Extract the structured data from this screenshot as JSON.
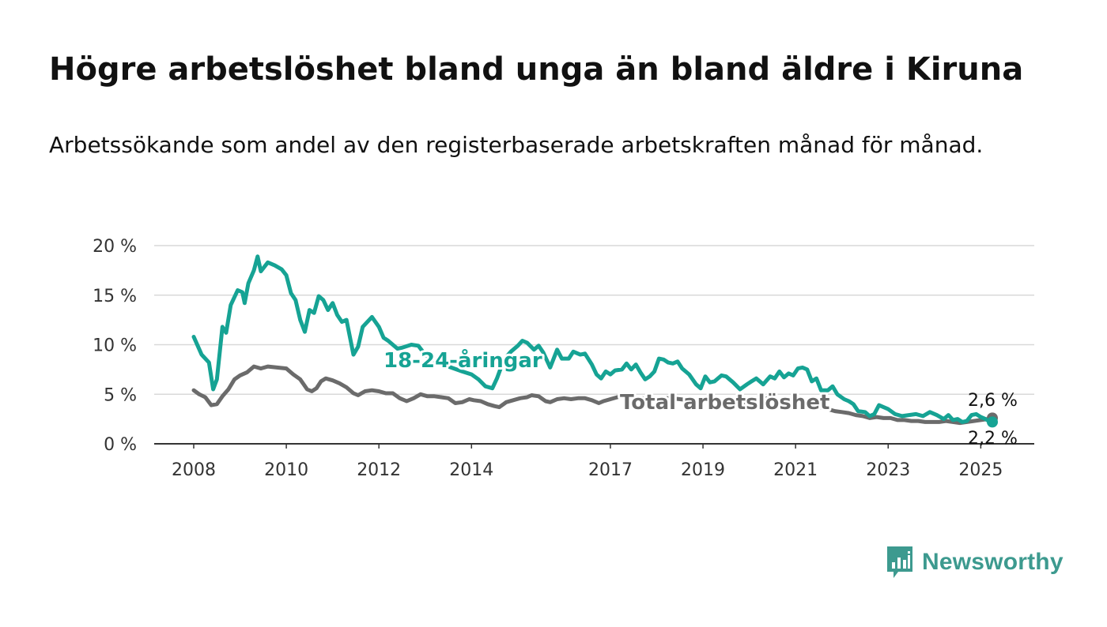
{
  "title": "Högre arbetslöshet bland unga än bland äldre i Kiruna",
  "subtitle": "Arbetssökande som andel av den registerbaserade arbetskraften månad för månad.",
  "logo_text": "Newsworthy",
  "colors": {
    "youth": "#16a394",
    "total": "#6b6b6b",
    "grid": "#d9d9d9",
    "axis": "#333333",
    "logo": "#3d9a8f"
  },
  "chart_data": {
    "type": "line",
    "title": "Högre arbetslöshet bland unga än bland äldre i Kiruna",
    "subtitle": "Arbetssökande som andel av den registerbaserade arbetskraften månad för månad.",
    "xlabel": "",
    "ylabel": "",
    "x_ticks": [
      "2008",
      "2010",
      "2012",
      "2014",
      "2017",
      "2019",
      "2021",
      "2023",
      "2025"
    ],
    "x_tick_values": [
      2008,
      2010,
      2012,
      2014,
      2017,
      2019,
      2021,
      2023,
      2025
    ],
    "y_ticks": [
      "0 %",
      "5 %",
      "10 %",
      "15 %",
      "20 %"
    ],
    "y_tick_values": [
      0,
      5,
      10,
      15,
      20
    ],
    "xlim": [
      2008,
      2025.25
    ],
    "ylim": [
      0,
      20
    ],
    "grid": true,
    "legend": "inline labels",
    "end_labels": [
      "2,6 %",
      "2,2 %"
    ],
    "series": [
      {
        "name": "18-24-åringar",
        "key": "youth",
        "values": [
          [
            2008.0,
            10.8
          ],
          [
            2008.17,
            9.0
          ],
          [
            2008.33,
            8.2
          ],
          [
            2008.42,
            5.5
          ],
          [
            2008.5,
            6.5
          ],
          [
            2008.62,
            11.8
          ],
          [
            2008.7,
            11.2
          ],
          [
            2008.8,
            14.0
          ],
          [
            2008.95,
            15.5
          ],
          [
            2009.05,
            15.3
          ],
          [
            2009.1,
            14.2
          ],
          [
            2009.18,
            16.2
          ],
          [
            2009.3,
            17.5
          ],
          [
            2009.38,
            18.9
          ],
          [
            2009.45,
            17.4
          ],
          [
            2009.6,
            18.3
          ],
          [
            2009.75,
            18.0
          ],
          [
            2009.9,
            17.6
          ],
          [
            2010.0,
            17.0
          ],
          [
            2010.1,
            15.2
          ],
          [
            2010.2,
            14.5
          ],
          [
            2010.3,
            12.5
          ],
          [
            2010.4,
            11.3
          ],
          [
            2010.5,
            13.5
          ],
          [
            2010.6,
            13.2
          ],
          [
            2010.7,
            14.9
          ],
          [
            2010.8,
            14.5
          ],
          [
            2010.9,
            13.5
          ],
          [
            2011.0,
            14.2
          ],
          [
            2011.1,
            13.0
          ],
          [
            2011.2,
            12.3
          ],
          [
            2011.3,
            12.5
          ],
          [
            2011.45,
            9.0
          ],
          [
            2011.55,
            9.8
          ],
          [
            2011.65,
            11.8
          ],
          [
            2011.85,
            12.8
          ],
          [
            2012.0,
            11.8
          ],
          [
            2012.1,
            10.7
          ],
          [
            2012.2,
            10.4
          ],
          [
            2012.4,
            9.6
          ],
          [
            2012.5,
            9.7
          ],
          [
            2012.7,
            10.0
          ],
          [
            2012.85,
            9.9
          ],
          [
            2013.0,
            9.0
          ],
          [
            2013.3,
            8.0
          ],
          [
            2013.5,
            7.8
          ],
          [
            2013.8,
            7.3
          ],
          [
            2014.0,
            7.0
          ],
          [
            2014.15,
            6.5
          ],
          [
            2014.3,
            5.8
          ],
          [
            2014.45,
            5.6
          ],
          [
            2014.55,
            6.6
          ],
          [
            2014.7,
            8.5
          ],
          [
            2014.85,
            9.3
          ],
          [
            2015.0,
            9.9
          ],
          [
            2015.1,
            10.4
          ],
          [
            2015.2,
            10.2
          ],
          [
            2015.35,
            9.5
          ],
          [
            2015.45,
            9.9
          ],
          [
            2015.55,
            9.2
          ],
          [
            2015.7,
            7.7
          ],
          [
            2015.85,
            9.5
          ],
          [
            2015.95,
            8.6
          ],
          [
            2016.1,
            8.6
          ],
          [
            2016.2,
            9.3
          ],
          [
            2016.35,
            9.0
          ],
          [
            2016.45,
            9.1
          ],
          [
            2016.6,
            8.0
          ],
          [
            2016.7,
            7.0
          ],
          [
            2016.8,
            6.6
          ],
          [
            2016.9,
            7.3
          ],
          [
            2017.0,
            7.0
          ],
          [
            2017.1,
            7.4
          ],
          [
            2017.25,
            7.5
          ],
          [
            2017.35,
            8.1
          ],
          [
            2017.45,
            7.5
          ],
          [
            2017.55,
            8.0
          ],
          [
            2017.65,
            7.2
          ],
          [
            2017.75,
            6.5
          ],
          [
            2017.85,
            6.8
          ],
          [
            2017.95,
            7.3
          ],
          [
            2018.05,
            8.6
          ],
          [
            2018.15,
            8.5
          ],
          [
            2018.25,
            8.2
          ],
          [
            2018.35,
            8.1
          ],
          [
            2018.45,
            8.3
          ],
          [
            2018.55,
            7.6
          ],
          [
            2018.7,
            7.0
          ],
          [
            2018.85,
            6.0
          ],
          [
            2018.95,
            5.6
          ],
          [
            2019.05,
            6.8
          ],
          [
            2019.15,
            6.2
          ],
          [
            2019.25,
            6.3
          ],
          [
            2019.4,
            6.9
          ],
          [
            2019.5,
            6.8
          ],
          [
            2019.65,
            6.2
          ],
          [
            2019.8,
            5.5
          ],
          [
            2019.95,
            6.0
          ],
          [
            2020.05,
            6.3
          ],
          [
            2020.15,
            6.6
          ],
          [
            2020.3,
            6.0
          ],
          [
            2020.45,
            6.8
          ],
          [
            2020.55,
            6.6
          ],
          [
            2020.65,
            7.3
          ],
          [
            2020.75,
            6.7
          ],
          [
            2020.85,
            7.1
          ],
          [
            2020.95,
            6.9
          ],
          [
            2021.05,
            7.6
          ],
          [
            2021.15,
            7.7
          ],
          [
            2021.25,
            7.5
          ],
          [
            2021.35,
            6.3
          ],
          [
            2021.45,
            6.6
          ],
          [
            2021.55,
            5.4
          ],
          [
            2021.7,
            5.4
          ],
          [
            2021.8,
            5.8
          ],
          [
            2021.9,
            5.0
          ],
          [
            2022.05,
            4.5
          ],
          [
            2022.15,
            4.3
          ],
          [
            2022.25,
            4.0
          ],
          [
            2022.35,
            3.3
          ],
          [
            2022.5,
            3.2
          ],
          [
            2022.6,
            2.8
          ],
          [
            2022.7,
            3.0
          ],
          [
            2022.8,
            3.9
          ],
          [
            2022.9,
            3.7
          ],
          [
            2023.0,
            3.5
          ],
          [
            2023.15,
            3.0
          ],
          [
            2023.3,
            2.8
          ],
          [
            2023.45,
            2.9
          ],
          [
            2023.6,
            3.0
          ],
          [
            2023.75,
            2.8
          ],
          [
            2023.9,
            3.2
          ],
          [
            2024.05,
            2.9
          ],
          [
            2024.2,
            2.5
          ],
          [
            2024.3,
            2.9
          ],
          [
            2024.4,
            2.4
          ],
          [
            2024.5,
            2.5
          ],
          [
            2024.6,
            2.2
          ],
          [
            2024.7,
            2.3
          ],
          [
            2024.8,
            2.9
          ],
          [
            2024.9,
            3.0
          ],
          [
            2025.0,
            2.7
          ],
          [
            2025.1,
            2.5
          ],
          [
            2025.17,
            2.3
          ],
          [
            2025.25,
            2.2
          ]
        ]
      },
      {
        "name": "Total arbetslöshet",
        "key": "total",
        "values": [
          [
            2008.0,
            5.4
          ],
          [
            2008.12,
            5.0
          ],
          [
            2008.25,
            4.7
          ],
          [
            2008.38,
            3.9
          ],
          [
            2008.5,
            4.0
          ],
          [
            2008.62,
            4.8
          ],
          [
            2008.75,
            5.5
          ],
          [
            2008.88,
            6.5
          ],
          [
            2009.0,
            6.9
          ],
          [
            2009.15,
            7.2
          ],
          [
            2009.3,
            7.8
          ],
          [
            2009.45,
            7.6
          ],
          [
            2009.6,
            7.8
          ],
          [
            2009.8,
            7.7
          ],
          [
            2010.0,
            7.6
          ],
          [
            2010.15,
            7.0
          ],
          [
            2010.3,
            6.5
          ],
          [
            2010.45,
            5.5
          ],
          [
            2010.55,
            5.3
          ],
          [
            2010.65,
            5.6
          ],
          [
            2010.75,
            6.3
          ],
          [
            2010.85,
            6.6
          ],
          [
            2011.0,
            6.4
          ],
          [
            2011.15,
            6.1
          ],
          [
            2011.3,
            5.7
          ],
          [
            2011.45,
            5.1
          ],
          [
            2011.55,
            4.9
          ],
          [
            2011.7,
            5.3
          ],
          [
            2011.85,
            5.4
          ],
          [
            2012.0,
            5.3
          ],
          [
            2012.15,
            5.1
          ],
          [
            2012.3,
            5.1
          ],
          [
            2012.45,
            4.6
          ],
          [
            2012.6,
            4.3
          ],
          [
            2012.75,
            4.6
          ],
          [
            2012.9,
            5.0
          ],
          [
            2013.05,
            4.8
          ],
          [
            2013.2,
            4.8
          ],
          [
            2013.35,
            4.7
          ],
          [
            2013.5,
            4.6
          ],
          [
            2013.65,
            4.1
          ],
          [
            2013.8,
            4.2
          ],
          [
            2013.95,
            4.5
          ],
          [
            2014.05,
            4.4
          ],
          [
            2014.2,
            4.3
          ],
          [
            2014.35,
            4.0
          ],
          [
            2014.5,
            3.8
          ],
          [
            2014.6,
            3.7
          ],
          [
            2014.75,
            4.2
          ],
          [
            2014.9,
            4.4
          ],
          [
            2015.05,
            4.6
          ],
          [
            2015.2,
            4.7
          ],
          [
            2015.3,
            4.9
          ],
          [
            2015.45,
            4.8
          ],
          [
            2015.6,
            4.3
          ],
          [
            2015.7,
            4.2
          ],
          [
            2015.85,
            4.5
          ],
          [
            2016.0,
            4.6
          ],
          [
            2016.15,
            4.5
          ],
          [
            2016.3,
            4.6
          ],
          [
            2016.45,
            4.6
          ],
          [
            2016.6,
            4.4
          ],
          [
            2016.75,
            4.1
          ],
          [
            2016.85,
            4.3
          ],
          [
            2017.0,
            4.5
          ],
          [
            2017.15,
            4.7
          ],
          [
            2017.3,
            4.9
          ],
          [
            2017.5,
            4.7
          ],
          [
            2017.7,
            4.6
          ],
          [
            2017.9,
            4.5
          ],
          [
            2018.1,
            4.6
          ],
          [
            2018.3,
            4.6
          ],
          [
            2018.5,
            4.5
          ],
          [
            2018.7,
            4.4
          ],
          [
            2018.9,
            4.3
          ],
          [
            2019.1,
            4.5
          ],
          [
            2019.3,
            4.4
          ],
          [
            2019.5,
            4.3
          ],
          [
            2019.7,
            4.1
          ],
          [
            2019.9,
            4.2
          ],
          [
            2020.1,
            4.6
          ],
          [
            2020.3,
            4.6
          ],
          [
            2020.5,
            4.5
          ],
          [
            2020.7,
            4.3
          ],
          [
            2020.9,
            4.3
          ],
          [
            2021.1,
            4.2
          ],
          [
            2021.3,
            3.9
          ],
          [
            2021.5,
            3.7
          ],
          [
            2021.7,
            3.5
          ],
          [
            2021.85,
            3.3
          ],
          [
            2022.0,
            3.2
          ],
          [
            2022.15,
            3.1
          ],
          [
            2022.3,
            2.9
          ],
          [
            2022.45,
            2.8
          ],
          [
            2022.6,
            2.6
          ],
          [
            2022.75,
            2.7
          ],
          [
            2022.9,
            2.6
          ],
          [
            2023.05,
            2.6
          ],
          [
            2023.2,
            2.4
          ],
          [
            2023.35,
            2.4
          ],
          [
            2023.5,
            2.3
          ],
          [
            2023.65,
            2.3
          ],
          [
            2023.8,
            2.2
          ],
          [
            2023.95,
            2.2
          ],
          [
            2024.1,
            2.2
          ],
          [
            2024.25,
            2.3
          ],
          [
            2024.4,
            2.2
          ],
          [
            2024.55,
            2.1
          ],
          [
            2024.7,
            2.2
          ],
          [
            2024.85,
            2.3
          ],
          [
            2025.0,
            2.4
          ],
          [
            2025.15,
            2.5
          ],
          [
            2025.25,
            2.6
          ]
        ]
      }
    ]
  }
}
